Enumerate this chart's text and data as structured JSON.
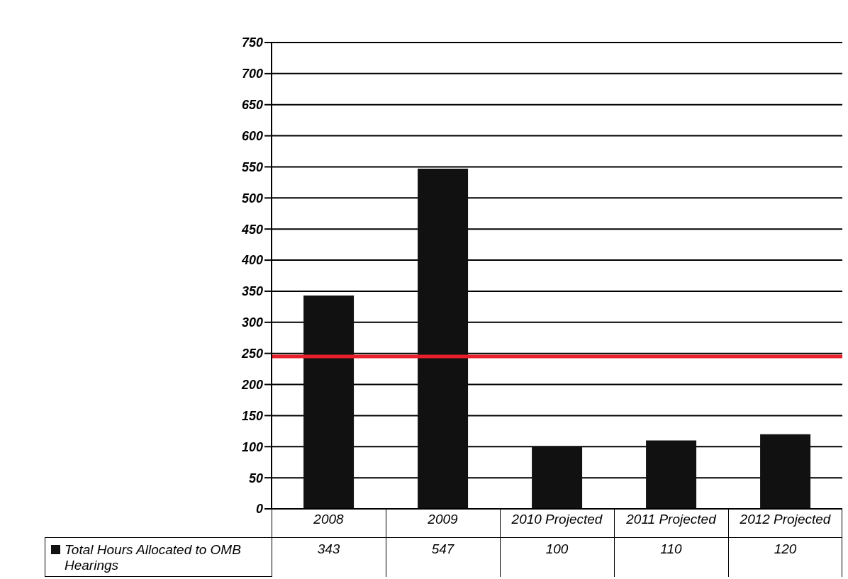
{
  "chart_data": {
    "type": "bar",
    "categories": [
      "2008",
      "2009",
      "2010 Projected",
      "2011 Projected",
      "2012 Projected"
    ],
    "series": [
      {
        "name": "Total Hours Allocated to OMB Hearings",
        "color": "#111111",
        "values": [
          343,
          547,
          100,
          110,
          120
        ]
      }
    ],
    "ylim": [
      0,
      750
    ],
    "yticks": [
      0,
      50,
      100,
      150,
      200,
      250,
      300,
      350,
      400,
      450,
      500,
      550,
      600,
      650,
      700,
      750
    ],
    "grid": "y",
    "legend": "bottom",
    "data_labels": true,
    "ref_lines": [
      {
        "axis": "y",
        "value": 245,
        "color": "#e8202a"
      }
    ]
  }
}
